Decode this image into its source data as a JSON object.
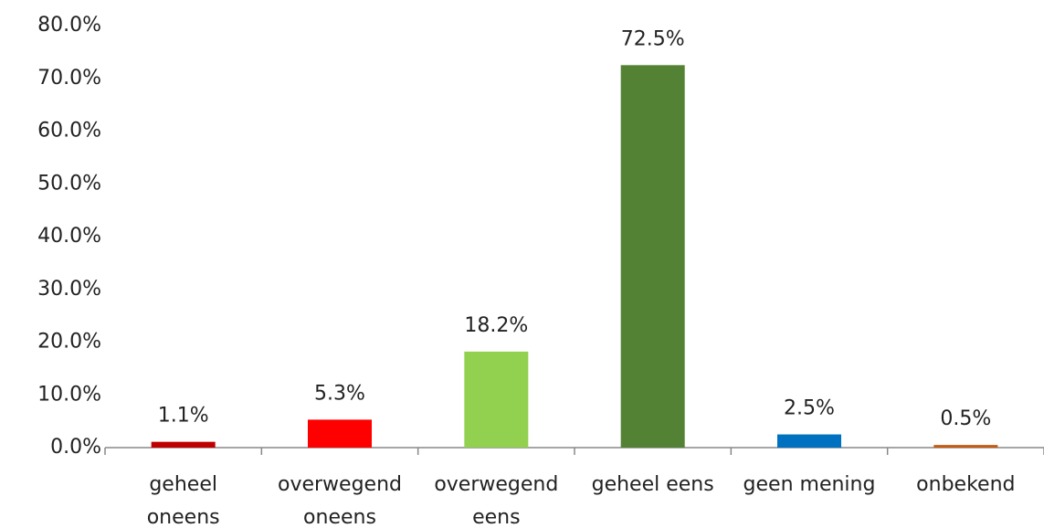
{
  "chart_data": {
    "type": "bar",
    "categories": [
      [
        "geheel",
        "oneens"
      ],
      [
        "overwegend",
        "oneens"
      ],
      [
        "overwegend",
        "eens"
      ],
      [
        "geheel eens"
      ],
      [
        "geen mening"
      ],
      [
        "onbekend"
      ]
    ],
    "values": [
      1.1,
      5.3,
      18.2,
      72.5,
      2.5,
      0.5
    ],
    "value_labels": [
      "1.1%",
      "5.3%",
      "18.2%",
      "72.5%",
      "2.5%",
      "0.5%"
    ],
    "colors": [
      "#c00000",
      "#ff0000",
      "#92d050",
      "#548235",
      "#0070c0",
      "#c55a11"
    ],
    "ylim": [
      0,
      80
    ],
    "yticks": [
      {
        "value": 0,
        "label": "0.0%"
      },
      {
        "value": 10,
        "label": "10.0%"
      },
      {
        "value": 20,
        "label": "20.0%"
      },
      {
        "value": 30,
        "label": "30.0%"
      },
      {
        "value": 40,
        "label": "40.0%"
      },
      {
        "value": 50,
        "label": "50.0%"
      },
      {
        "value": 60,
        "label": "60.0%"
      },
      {
        "value": 70,
        "label": "70.0%"
      },
      {
        "value": 80,
        "label": "80.0%"
      }
    ],
    "grid": false
  }
}
